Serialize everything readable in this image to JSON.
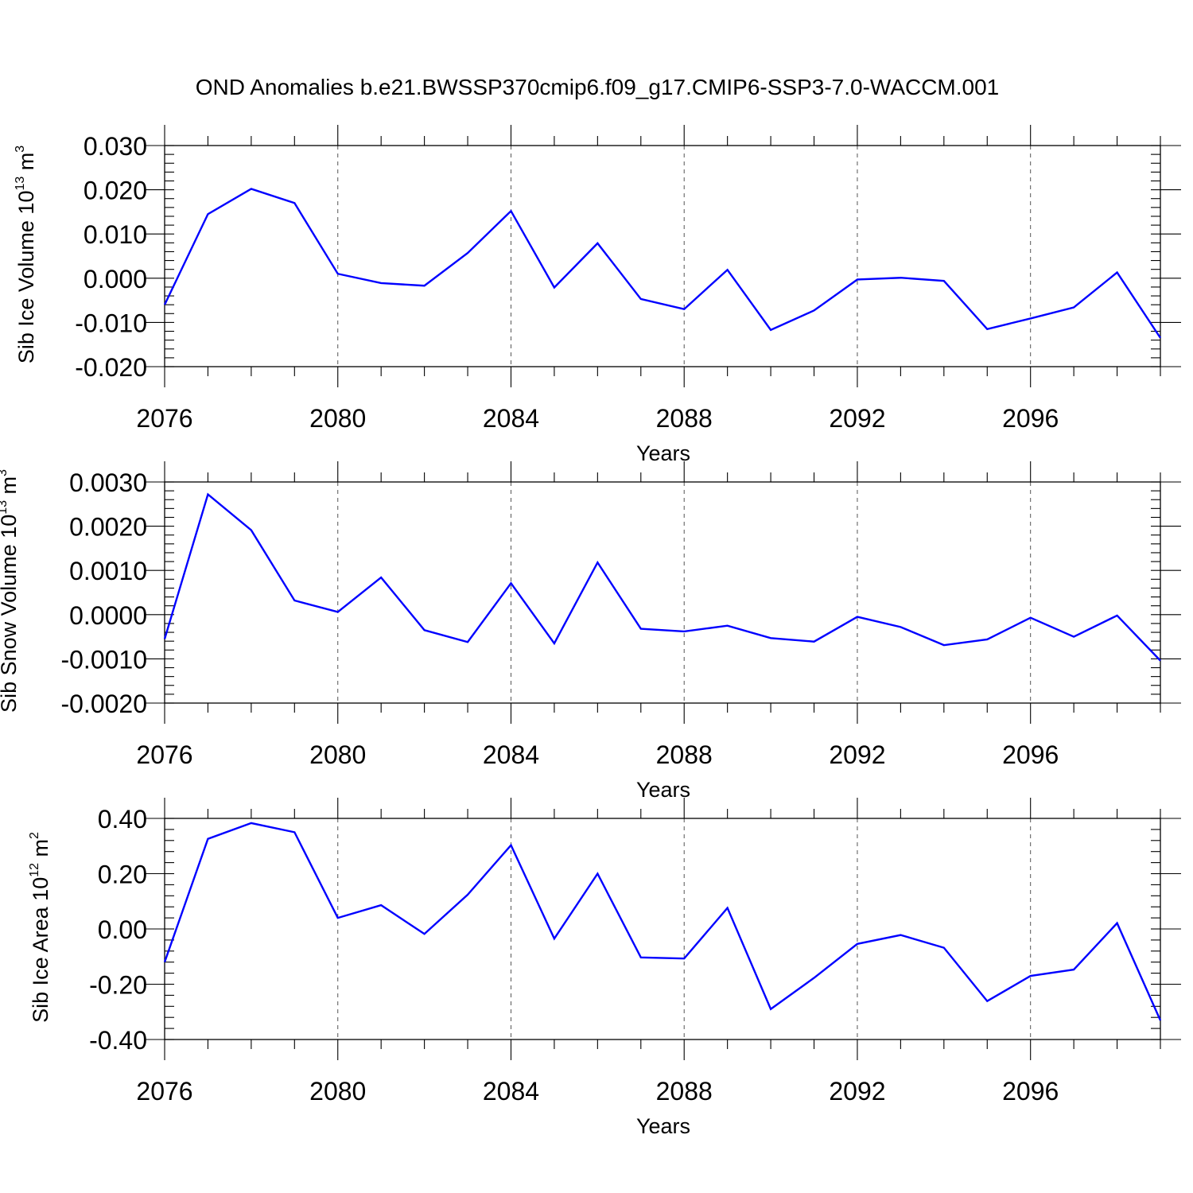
{
  "title": "OND Anomalies b.e21.BWSSP370cmip6.f09_g17.CMIP6-SSP3-7.0-WACCM.001",
  "chart_data": [
    {
      "type": "line",
      "xlabel": "Years",
      "ylabel": {
        "main": "Sib Ice Volume 10",
        "sup": "13",
        "unit": " m",
        "unit_sup": "3"
      },
      "xlim": [
        2076,
        2099
      ],
      "ylim": [
        -0.02,
        0.03
      ],
      "xticks": [
        2076,
        2080,
        2084,
        2088,
        2092,
        2096
      ],
      "xtick_labels": [
        "2076",
        "2080",
        "2084",
        "2088",
        "2092",
        "2096"
      ],
      "yticks": [
        -0.02,
        -0.01,
        0.0,
        0.01,
        0.02,
        0.03
      ],
      "ytick_labels": [
        "-0.020",
        "-0.010",
        "0.000",
        "0.010",
        "0.020",
        "0.030"
      ],
      "grid": "vertical dashed at major x ticks",
      "x": [
        2076,
        2077,
        2078,
        2079,
        2080,
        2081,
        2082,
        2083,
        2084,
        2085,
        2086,
        2087,
        2088,
        2089,
        2090,
        2091,
        2092,
        2093,
        2094,
        2095,
        2096,
        2097,
        2098,
        2099
      ],
      "series": [
        {
          "color": "#0000ff",
          "values": [
            -0.006,
            0.0145,
            0.0202,
            0.017,
            0.001,
            -0.0011,
            -0.0017,
            0.0057,
            0.0152,
            -0.0021,
            0.0079,
            -0.0047,
            -0.007,
            0.0019,
            -0.0117,
            -0.0073,
            -0.0003,
            0.0001,
            -0.0006,
            -0.0115,
            -0.0091,
            -0.0066,
            0.0013,
            -0.0135
          ]
        }
      ]
    },
    {
      "type": "line",
      "xlabel": "Years",
      "ylabel": {
        "main": "Sib Snow Volume 10",
        "sup": "13",
        "unit": " m",
        "unit_sup": "3"
      },
      "xlim": [
        2076,
        2099
      ],
      "ylim": [
        -0.002,
        0.003
      ],
      "xticks": [
        2076,
        2080,
        2084,
        2088,
        2092,
        2096
      ],
      "xtick_labels": [
        "2076",
        "2080",
        "2084",
        "2088",
        "2092",
        "2096"
      ],
      "yticks": [
        -0.002,
        -0.001,
        0.0,
        0.001,
        0.002,
        0.003
      ],
      "ytick_labels": [
        "-0.0020",
        "-0.0010",
        "0.0000",
        "0.0010",
        "0.0020",
        "0.0030"
      ],
      "grid": "vertical dashed at major x ticks",
      "x": [
        2076,
        2077,
        2078,
        2079,
        2080,
        2081,
        2082,
        2083,
        2084,
        2085,
        2086,
        2087,
        2088,
        2089,
        2090,
        2091,
        2092,
        2093,
        2094,
        2095,
        2096,
        2097,
        2098,
        2099
      ],
      "series": [
        {
          "color": "#0000ff",
          "values": [
            -0.00055,
            0.00272,
            0.00191,
            0.00032,
            6e-05,
            0.00084,
            -0.00035,
            -0.00062,
            0.00071,
            -0.00065,
            0.00118,
            -0.00032,
            -0.00038,
            -0.00025,
            -0.00053,
            -0.00061,
            -5e-05,
            -0.00028,
            -0.00069,
            -0.00056,
            -7e-05,
            -0.0005,
            -2e-05,
            -0.00104
          ]
        }
      ]
    },
    {
      "type": "line",
      "xlabel": "Years",
      "ylabel": {
        "main": "Sib Ice Area 10",
        "sup": "12",
        "unit": " m",
        "unit_sup": "2"
      },
      "xlim": [
        2076,
        2099
      ],
      "ylim": [
        -0.4,
        0.4
      ],
      "xticks": [
        2076,
        2080,
        2084,
        2088,
        2092,
        2096
      ],
      "xtick_labels": [
        "2076",
        "2080",
        "2084",
        "2088",
        "2092",
        "2096"
      ],
      "yticks": [
        -0.4,
        -0.2,
        0.0,
        0.2,
        0.4
      ],
      "ytick_labels": [
        "-0.40",
        "-0.20",
        "0.00",
        "0.20",
        "0.40"
      ],
      "grid": "vertical dashed at major x ticks",
      "x": [
        2076,
        2077,
        2078,
        2079,
        2080,
        2081,
        2082,
        2083,
        2084,
        2085,
        2086,
        2087,
        2088,
        2089,
        2090,
        2091,
        2092,
        2093,
        2094,
        2095,
        2096,
        2097,
        2098,
        2099
      ],
      "series": [
        {
          "color": "#0000ff",
          "values": [
            -0.12,
            0.326,
            0.383,
            0.35,
            0.04,
            0.086,
            -0.018,
            0.124,
            0.303,
            -0.035,
            0.2,
            -0.103,
            -0.107,
            0.076,
            -0.29,
            -0.177,
            -0.054,
            -0.022,
            -0.068,
            -0.261,
            -0.17,
            -0.147,
            0.021,
            -0.331
          ]
        }
      ]
    }
  ]
}
